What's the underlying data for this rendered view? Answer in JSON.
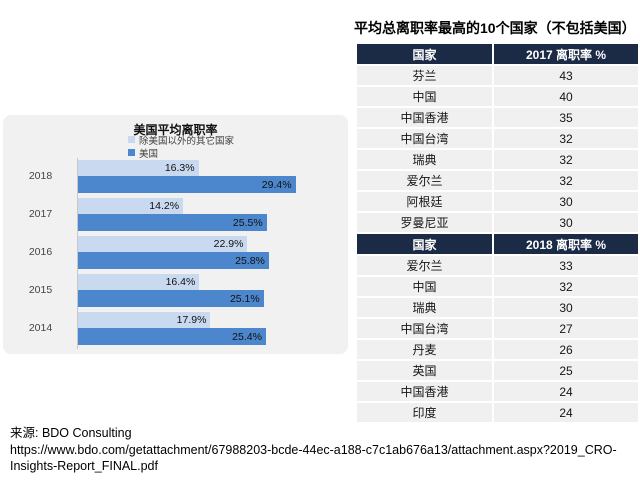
{
  "page": {
    "background": "#ffffff"
  },
  "table_section": {
    "title": "平均总离职率最高的10个国家（不包括美国）",
    "header_bg": "#1b2a45",
    "row_bg": "#f0f0f0",
    "tables": [
      {
        "headers": [
          "国家",
          "2017 离职率 %"
        ],
        "rows": [
          [
            "芬兰",
            "43"
          ],
          [
            "中国",
            "40"
          ],
          [
            "中国香港",
            "35"
          ],
          [
            "中国台湾",
            "32"
          ],
          [
            "瑞典",
            "32"
          ],
          [
            "爱尔兰",
            "32"
          ],
          [
            "阿根廷",
            "30"
          ],
          [
            "罗曼尼亚",
            "30"
          ]
        ]
      },
      {
        "headers": [
          "国家",
          "2018 离职率 %"
        ],
        "rows": [
          [
            "爱尔兰",
            "33"
          ],
          [
            "中国",
            "32"
          ],
          [
            "瑞典",
            "30"
          ],
          [
            "中国台湾",
            "27"
          ],
          [
            "丹麦",
            "26"
          ],
          [
            "英国",
            "25"
          ],
          [
            "中国香港",
            "24"
          ],
          [
            "印度",
            "24"
          ]
        ]
      }
    ]
  },
  "chart_data": {
    "type": "bar",
    "orientation": "horizontal",
    "title": "美国平均离职率",
    "categories": [
      "2018",
      "2017",
      "2016",
      "2015",
      "2014"
    ],
    "series": [
      {
        "name": "除美国以外的其它国家",
        "color": "#c9daf0",
        "values": [
          16.3,
          14.2,
          22.9,
          16.4,
          17.9
        ]
      },
      {
        "name": "美国",
        "color": "#4c86cc",
        "values": [
          29.4,
          25.5,
          25.8,
          25.1,
          25.4
        ]
      }
    ],
    "value_suffix": "%",
    "xlim": [
      0,
      36
    ],
    "grid": false,
    "legend_position": "top-inside",
    "panel_bg": "#f1f1f2"
  },
  "footer": {
    "source_line": "来源: BDO Consulting",
    "url_line_1": "https://www.bdo.com/getattachment/67988203-bcde-44ec-a188-c7c1ab676a13/attachment.aspx?2019_CRO-",
    "url_line_2": "Insights-Report_FINAL.pdf"
  }
}
